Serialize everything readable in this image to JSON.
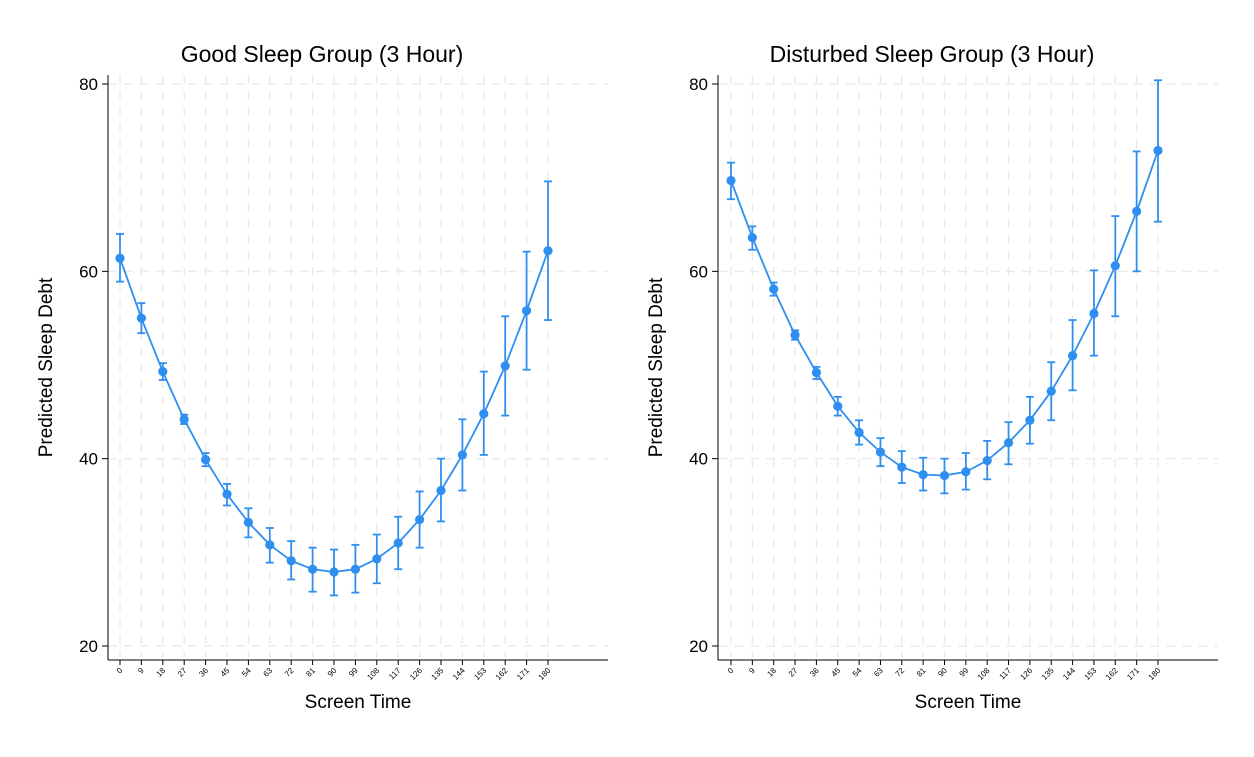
{
  "colors": {
    "series": "#2e8ff0",
    "grid": "#e8e8e8",
    "axis": "#000000"
  },
  "chart_data": [
    {
      "type": "line",
      "title": "Good Sleep Group (3 Hour)",
      "xlabel": "Screen Time",
      "ylabel": "Predicted Sleep Debt",
      "ylim": [
        20,
        80
      ],
      "yticks": [
        20,
        40,
        60,
        80
      ],
      "x": [
        0,
        9,
        18,
        27,
        36,
        45,
        54,
        63,
        72,
        81,
        90,
        99,
        108,
        117,
        126,
        135,
        144,
        153,
        162,
        171,
        180
      ],
      "xtick_labels": [
        "0",
        "9",
        "18",
        "27",
        "36",
        "45",
        "54",
        "63",
        "72",
        "81",
        "90",
        "99",
        "108",
        "117",
        "126",
        "135",
        "144",
        "153",
        "162",
        "171",
        "180"
      ],
      "grid": true,
      "error_bars": true,
      "series": [
        {
          "values": [
            61.4,
            55.0,
            49.3,
            44.2,
            39.9,
            36.2,
            33.2,
            30.8,
            29.1,
            28.2,
            27.9,
            28.2,
            29.3,
            31.0,
            33.5,
            36.6,
            40.4,
            44.8,
            49.9,
            55.8,
            62.2
          ],
          "lower": [
            58.9,
            53.4,
            48.4,
            43.7,
            39.2,
            35.0,
            31.6,
            28.9,
            27.1,
            25.8,
            25.4,
            25.7,
            26.7,
            28.2,
            30.5,
            33.3,
            36.6,
            40.4,
            44.6,
            49.5,
            54.8
          ],
          "upper": [
            64.0,
            56.6,
            50.2,
            44.7,
            40.6,
            37.3,
            34.7,
            32.6,
            31.2,
            30.5,
            30.3,
            30.8,
            31.9,
            33.8,
            36.5,
            40.0,
            44.2,
            49.3,
            55.2,
            62.1,
            69.6
          ]
        }
      ]
    },
    {
      "type": "line",
      "title": "Disturbed Sleep Group (3 Hour)",
      "xlabel": "Screen Time",
      "ylabel": "Predicted Sleep Debt",
      "ylim": [
        20,
        80
      ],
      "yticks": [
        20,
        40,
        60,
        80
      ],
      "x": [
        0,
        9,
        18,
        27,
        36,
        45,
        54,
        63,
        72,
        81,
        90,
        99,
        108,
        117,
        126,
        135,
        144,
        153,
        162,
        171,
        180
      ],
      "xtick_labels": [
        "0",
        "9",
        "18",
        "27",
        "36",
        "45",
        "54",
        "63",
        "72",
        "81",
        "90",
        "99",
        "108",
        "117",
        "126",
        "135",
        "144",
        "153",
        "162",
        "171",
        "180"
      ],
      "grid": true,
      "error_bars": true,
      "series": [
        {
          "values": [
            69.7,
            63.6,
            58.1,
            53.2,
            49.2,
            45.6,
            42.8,
            40.7,
            39.1,
            38.3,
            38.2,
            38.6,
            39.8,
            41.7,
            44.1,
            47.2,
            51.0,
            55.5,
            60.6,
            66.4,
            72.9
          ],
          "lower": [
            67.7,
            62.3,
            57.4,
            52.7,
            48.5,
            44.6,
            41.5,
            39.2,
            37.4,
            36.6,
            36.3,
            36.7,
            37.8,
            39.4,
            41.6,
            44.1,
            47.3,
            51.0,
            55.2,
            60.0,
            65.3
          ],
          "upper": [
            71.6,
            64.8,
            58.8,
            53.7,
            49.8,
            46.6,
            44.1,
            42.2,
            40.8,
            40.1,
            40.0,
            40.6,
            41.9,
            43.9,
            46.6,
            50.3,
            54.8,
            60.1,
            65.9,
            72.8,
            80.4
          ]
        }
      ]
    }
  ]
}
